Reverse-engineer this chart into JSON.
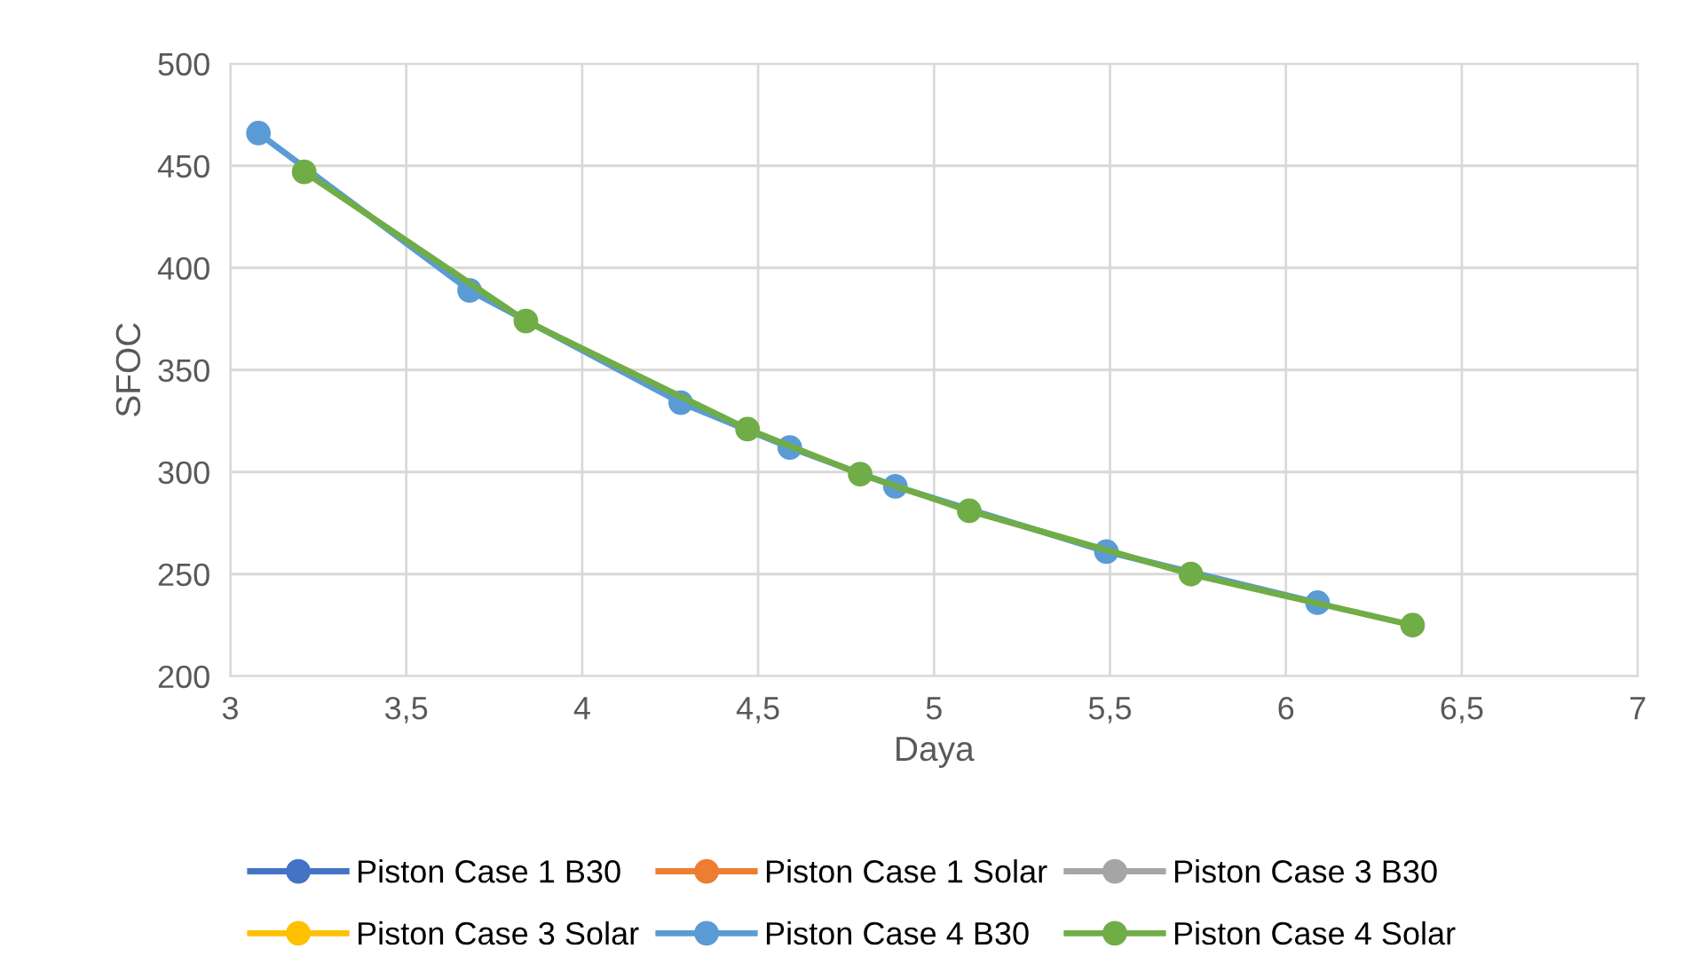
{
  "chart_data": {
    "type": "line",
    "xlabel": "Daya",
    "ylabel": "SFOC",
    "xlim": [
      3,
      7
    ],
    "xticks": [
      {
        "value": 3,
        "label": "3"
      },
      {
        "value": 3.5,
        "label": "3,5"
      },
      {
        "value": 4,
        "label": "4"
      },
      {
        "value": 4.5,
        "label": "4,5"
      },
      {
        "value": 5,
        "label": "5"
      },
      {
        "value": 5.5,
        "label": "5,5"
      },
      {
        "value": 6,
        "label": "6"
      },
      {
        "value": 6.5,
        "label": "6,5"
      },
      {
        "value": 7,
        "label": "7"
      }
    ],
    "ylim": [
      200,
      500
    ],
    "yticks": [
      200,
      250,
      300,
      350,
      400,
      450,
      500
    ],
    "grid": true,
    "legend": "bottom",
    "marker": "circle",
    "line_style": "solid",
    "series": [
      {
        "name": "Piston Case 1 B30",
        "color": "#4472c4"
      },
      {
        "name": "Piston Case 1 Solar",
        "color": "#ed7d31"
      },
      {
        "name": "Piston Case 3 B30",
        "color": "#a5a5a5"
      },
      {
        "name": "Piston Case 3 Solar",
        "color": "#ffc000"
      },
      {
        "name": "Piston Case 4 B30",
        "color": "#5b9bd5",
        "x": [
          3.08,
          3.68,
          4.28,
          4.59,
          4.89,
          5.49,
          6.09
        ],
        "values": [
          466,
          389,
          334,
          312,
          293,
          261,
          236
        ]
      },
      {
        "name": "Piston Case 4 Solar",
        "color": "#70ad47",
        "x": [
          3.21,
          3.84,
          4.47,
          4.79,
          5.1,
          5.73,
          6.36
        ],
        "values": [
          447,
          374,
          321,
          299,
          281,
          250,
          225
        ]
      }
    ]
  }
}
